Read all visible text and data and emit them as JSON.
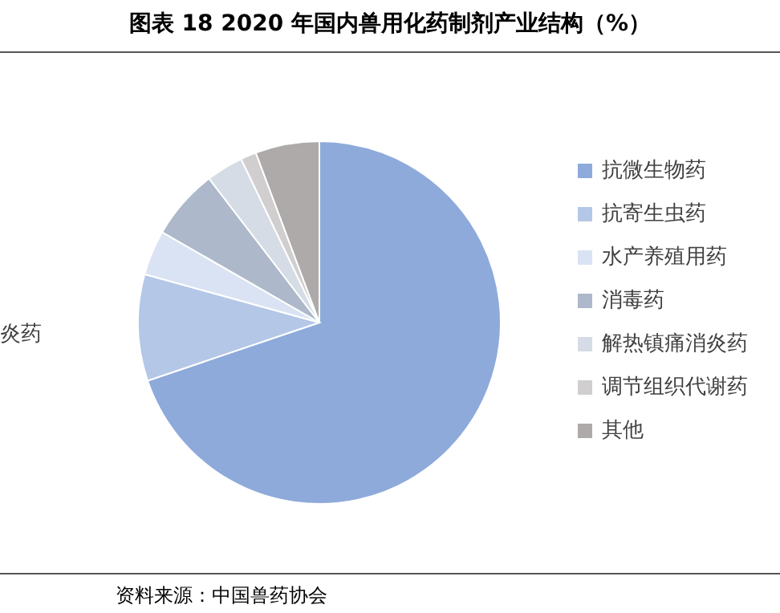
{
  "chart_data": {
    "type": "pie",
    "title": "图表 18 2020 年国内兽用化药制剂产业结构（%）",
    "categories": [
      "抗微生物药",
      "抗寄生虫药",
      "水产养殖用药",
      "消毒药",
      "解热镇痛消炎药",
      "调节组织代谢药",
      "其他"
    ],
    "values": [
      69.8,
      9.5,
      4.0,
      6.3,
      3.3,
      1.4,
      5.7
    ],
    "colors": [
      "#8eaadb",
      "#b4c7e7",
      "#dae3f3",
      "#adb9ca",
      "#d6dce5",
      "#d0cece",
      "#aeaaaa"
    ],
    "legend": "right",
    "annotations": [
      "炎药",
      "资料来源：中国兽药协会"
    ]
  }
}
